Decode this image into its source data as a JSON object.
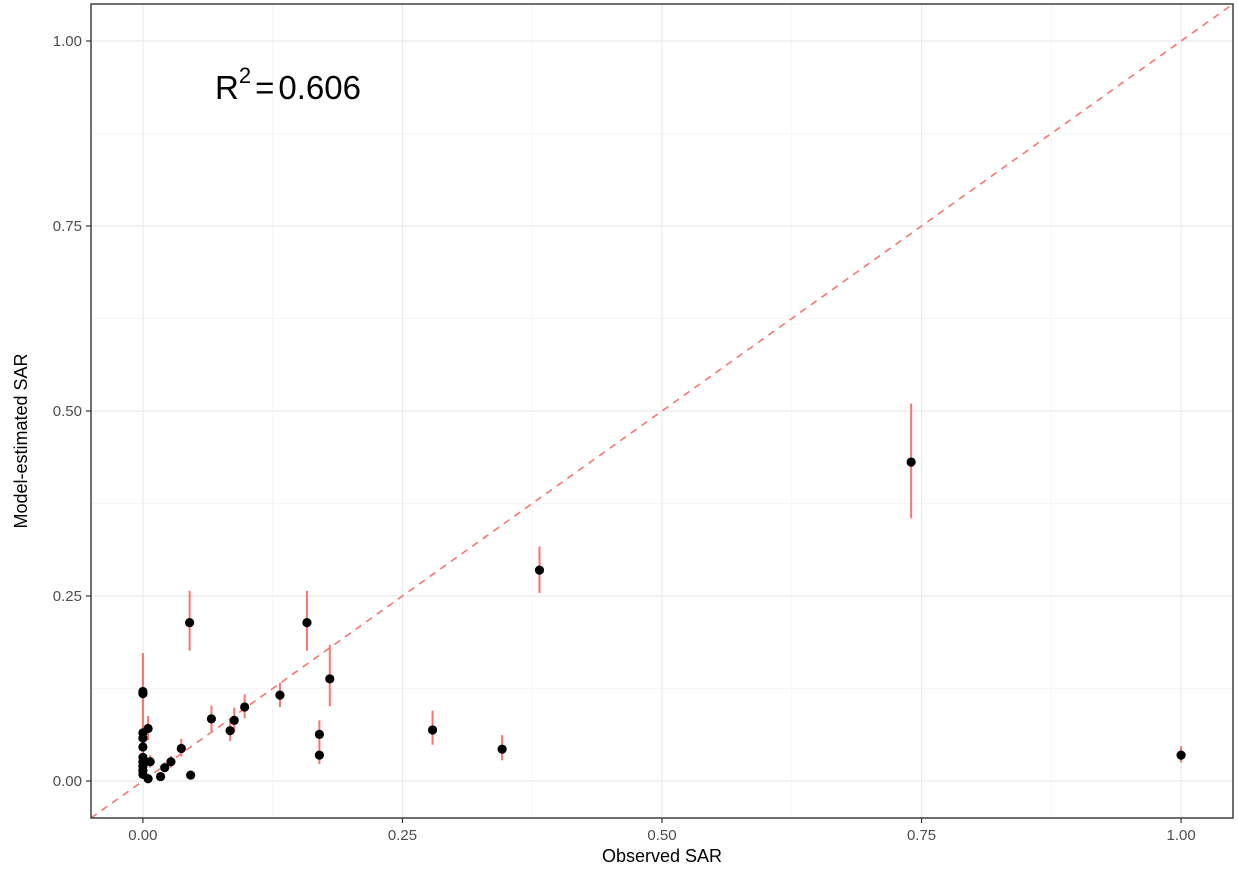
{
  "chart_data": {
    "type": "scatter",
    "title": "",
    "xlabel": "Observed SAR",
    "ylabel": "Model-estimated SAR",
    "xlim": [
      -0.05,
      1.05
    ],
    "ylim": [
      -0.05,
      1.05
    ],
    "x_ticks": [
      0.0,
      0.25,
      0.5,
      0.75,
      1.0
    ],
    "y_ticks": [
      0.0,
      0.25,
      0.5,
      0.75,
      1.0
    ],
    "x_tick_labels": [
      "0.00",
      "0.25",
      "0.50",
      "0.75",
      "1.00"
    ],
    "y_tick_labels": [
      "0.00",
      "0.25",
      "0.50",
      "0.75",
      "1.00"
    ],
    "grid": true,
    "legend": "none",
    "reference_line": {
      "slope": 1,
      "intercept": 0,
      "style": "dashed",
      "color": "#F8766D"
    },
    "annotation": {
      "base": "R",
      "superscript": "2",
      "relation": "=",
      "value": "0.606"
    },
    "colors": {
      "points": "#000000",
      "error_bars": "#F8766D",
      "panel_border": "#333333",
      "grid_major": "#ebebeb",
      "grid_minor": "#f3f3f3"
    },
    "points": [
      {
        "x": 0.0,
        "y": 0.121,
        "lo": 0.075,
        "hi": 0.173
      },
      {
        "x": 0.0,
        "y": 0.118,
        "lo": 0.072,
        "hi": 0.168
      },
      {
        "x": 0.0,
        "y": 0.065,
        "lo": 0.045,
        "hi": 0.085
      },
      {
        "x": 0.0,
        "y": 0.058,
        "lo": 0.04,
        "hi": 0.077
      },
      {
        "x": 0.0,
        "y": 0.046,
        "lo": 0.032,
        "hi": 0.062
      },
      {
        "x": 0.0,
        "y": 0.032,
        "lo": 0.022,
        "hi": 0.043
      },
      {
        "x": 0.0,
        "y": 0.026,
        "lo": 0.018,
        "hi": 0.036
      },
      {
        "x": 0.0,
        "y": 0.02,
        "lo": 0.013,
        "hi": 0.028
      },
      {
        "x": 0.0,
        "y": 0.014,
        "lo": 0.009,
        "hi": 0.02
      },
      {
        "x": 0.0,
        "y": 0.009,
        "lo": 0.005,
        "hi": 0.014
      },
      {
        "x": 0.005,
        "y": 0.071,
        "lo": 0.055,
        "hi": 0.088
      },
      {
        "x": 0.007,
        "y": 0.026,
        "lo": 0.018,
        "hi": 0.035
      },
      {
        "x": 0.005,
        "y": 0.003,
        "lo": 0.001,
        "hi": 0.006
      },
      {
        "x": 0.017,
        "y": 0.006,
        "lo": 0.003,
        "hi": 0.01
      },
      {
        "x": 0.021,
        "y": 0.018,
        "lo": 0.012,
        "hi": 0.025
      },
      {
        "x": 0.027,
        "y": 0.026,
        "lo": 0.018,
        "hi": 0.034
      },
      {
        "x": 0.037,
        "y": 0.044,
        "lo": 0.033,
        "hi": 0.057
      },
      {
        "x": 0.045,
        "y": 0.214,
        "lo": 0.176,
        "hi": 0.257
      },
      {
        "x": 0.046,
        "y": 0.008,
        "lo": 0.004,
        "hi": 0.013
      },
      {
        "x": 0.066,
        "y": 0.084,
        "lo": 0.067,
        "hi": 0.102
      },
      {
        "x": 0.084,
        "y": 0.068,
        "lo": 0.054,
        "hi": 0.084
      },
      {
        "x": 0.088,
        "y": 0.082,
        "lo": 0.066,
        "hi": 0.099
      },
      {
        "x": 0.098,
        "y": 0.1,
        "lo": 0.085,
        "hi": 0.117
      },
      {
        "x": 0.132,
        "y": 0.116,
        "lo": 0.1,
        "hi": 0.133
      },
      {
        "x": 0.158,
        "y": 0.214,
        "lo": 0.176,
        "hi": 0.257
      },
      {
        "x": 0.17,
        "y": 0.063,
        "lo": 0.047,
        "hi": 0.082
      },
      {
        "x": 0.17,
        "y": 0.035,
        "lo": 0.023,
        "hi": 0.049
      },
      {
        "x": 0.18,
        "y": 0.138,
        "lo": 0.101,
        "hi": 0.184
      },
      {
        "x": 0.279,
        "y": 0.069,
        "lo": 0.049,
        "hi": 0.095
      },
      {
        "x": 0.346,
        "y": 0.043,
        "lo": 0.028,
        "hi": 0.062
      },
      {
        "x": 0.382,
        "y": 0.285,
        "lo": 0.254,
        "hi": 0.317
      },
      {
        "x": 0.74,
        "y": 0.431,
        "lo": 0.355,
        "hi": 0.51
      },
      {
        "x": 1.0,
        "y": 0.035,
        "lo": 0.025,
        "hi": 0.047
      }
    ]
  }
}
